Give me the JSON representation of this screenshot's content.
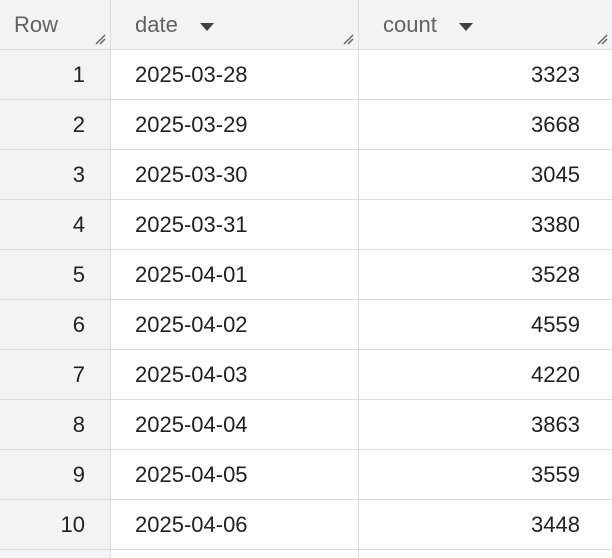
{
  "table": {
    "columns": [
      {
        "label": "Row"
      },
      {
        "label": "date"
      },
      {
        "label": "count"
      }
    ],
    "rows": [
      {
        "row": "1",
        "date": "2025-03-28",
        "count": "3323"
      },
      {
        "row": "2",
        "date": "2025-03-29",
        "count": "3668"
      },
      {
        "row": "3",
        "date": "2025-03-30",
        "count": "3045"
      },
      {
        "row": "4",
        "date": "2025-03-31",
        "count": "3380"
      },
      {
        "row": "5",
        "date": "2025-04-01",
        "count": "3528"
      },
      {
        "row": "6",
        "date": "2025-04-02",
        "count": "4559"
      },
      {
        "row": "7",
        "date": "2025-04-03",
        "count": "4220"
      },
      {
        "row": "8",
        "date": "2025-04-04",
        "count": "3863"
      },
      {
        "row": "9",
        "date": "2025-04-05",
        "count": "3559"
      },
      {
        "row": "10",
        "date": "2025-04-06",
        "count": "3448"
      }
    ]
  },
  "icons": {
    "sort": "chevron-down-icon",
    "resize": "resize-handle-icon"
  },
  "colors": {
    "header_bg": "#f1f3f4",
    "grid_line": "#dadce0",
    "header_text": "#5f6368"
  }
}
